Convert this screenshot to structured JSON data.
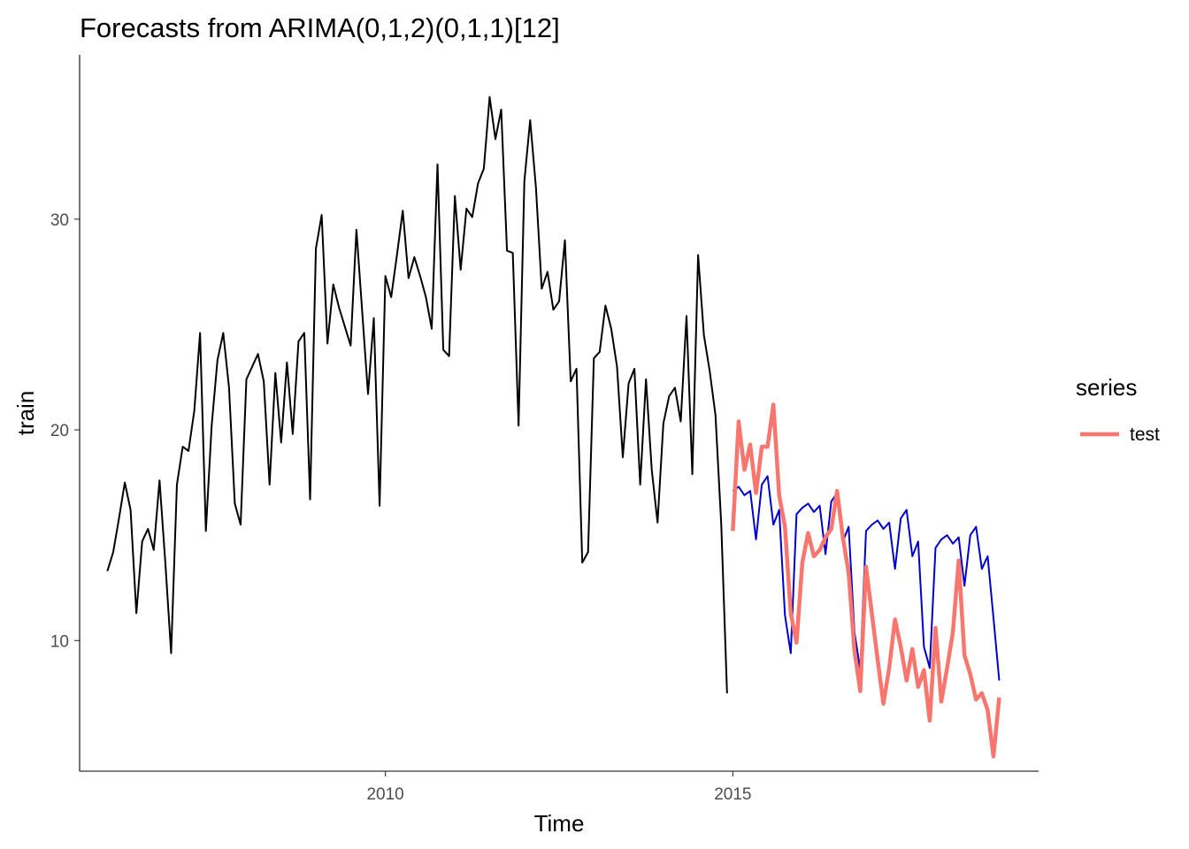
{
  "chart_data": {
    "type": "line",
    "title": "Forecasts from ARIMA(0,1,2)(0,1,1)[12]",
    "xlabel": "Time",
    "ylabel": "train",
    "xlim": [
      2005.6,
      2019.4
    ],
    "ylim": [
      3.8,
      37.8
    ],
    "x_ticks": [
      2010,
      2015
    ],
    "x_tick_labels": [
      "2010",
      "2015"
    ],
    "y_ticks": [
      10,
      20,
      30
    ],
    "y_tick_labels": [
      "10",
      "20",
      "30"
    ],
    "grid": false,
    "legend": {
      "title": "series",
      "position": "right",
      "entries": [
        {
          "label": "test",
          "color": "#F8766D"
        }
      ]
    },
    "series": [
      {
        "name": "train",
        "color": "#000000",
        "in_legend": false,
        "start": 2006.0,
        "frequency": 12,
        "values": [
          13.3,
          14.2,
          15.8,
          17.5,
          16.2,
          11.3,
          14.7,
          15.3,
          14.3,
          17.6,
          13.7,
          9.4,
          17.4,
          19.2,
          19.0,
          20.9,
          24.6,
          15.2,
          20.2,
          23.3,
          24.6,
          22.0,
          16.5,
          15.5,
          22.4,
          23.0,
          23.6,
          22.3,
          17.4,
          22.7,
          19.4,
          23.2,
          19.8,
          24.2,
          24.6,
          16.7,
          28.6,
          30.2,
          24.1,
          26.9,
          25.8,
          24.9,
          24.0,
          29.5,
          25.6,
          21.7,
          25.3,
          16.4,
          27.3,
          26.3,
          28.3,
          30.4,
          27.2,
          28.2,
          27.3,
          26.3,
          24.8,
          32.6,
          23.8,
          23.5,
          31.1,
          27.6,
          30.5,
          30.1,
          31.7,
          32.4,
          35.8,
          33.8,
          35.2,
          28.5,
          28.4,
          20.2,
          31.8,
          34.7,
          31.5,
          26.7,
          27.5,
          25.7,
          26.1,
          29.0,
          22.3,
          22.9,
          13.7,
          14.2,
          23.4,
          23.7,
          25.9,
          24.8,
          23.0,
          18.7,
          22.2,
          22.9,
          17.4,
          22.4,
          18.1,
          15.6,
          20.3,
          21.6,
          22.0,
          20.4,
          25.4,
          17.9,
          28.3,
          24.5,
          22.8,
          20.7,
          15.5,
          7.5
        ]
      },
      {
        "name": "forecast",
        "color": "#0000CC",
        "in_legend": false,
        "start": 2015.0,
        "frequency": 12,
        "values": [
          17.1,
          17.3,
          16.9,
          17.1,
          14.8,
          17.4,
          17.8,
          15.5,
          16.2,
          11.2,
          9.4,
          16.0,
          16.3,
          16.5,
          16.1,
          16.4,
          14.1,
          16.6,
          17.0,
          14.7,
          15.4,
          10.4,
          8.6,
          15.2,
          15.5,
          15.7,
          15.3,
          15.6,
          13.4,
          15.8,
          16.2,
          14.0,
          14.7,
          9.7,
          8.7,
          14.4,
          14.8,
          15.0,
          14.6,
          14.9,
          12.6,
          15.0,
          15.4,
          13.4,
          14.0,
          11.1,
          8.1
        ]
      },
      {
        "name": "test",
        "color": "#F8766D",
        "in_legend": true,
        "start": 2015.0,
        "frequency": 12,
        "values": [
          15.2,
          20.4,
          18.1,
          19.3,
          17.0,
          19.2,
          19.2,
          21.2,
          16.9,
          15.4,
          11.3,
          9.9,
          13.7,
          15.1,
          14.0,
          14.3,
          14.9,
          15.3,
          17.1,
          14.9,
          13.2,
          9.5,
          7.6,
          13.5,
          11.3,
          9.1,
          7.0,
          8.7,
          11.0,
          9.7,
          8.1,
          9.6,
          7.8,
          8.6,
          6.2,
          10.6,
          7.1,
          8.7,
          10.4,
          13.8,
          9.3,
          8.4,
          7.2,
          7.5,
          6.7,
          4.5,
          7.3
        ]
      }
    ]
  }
}
